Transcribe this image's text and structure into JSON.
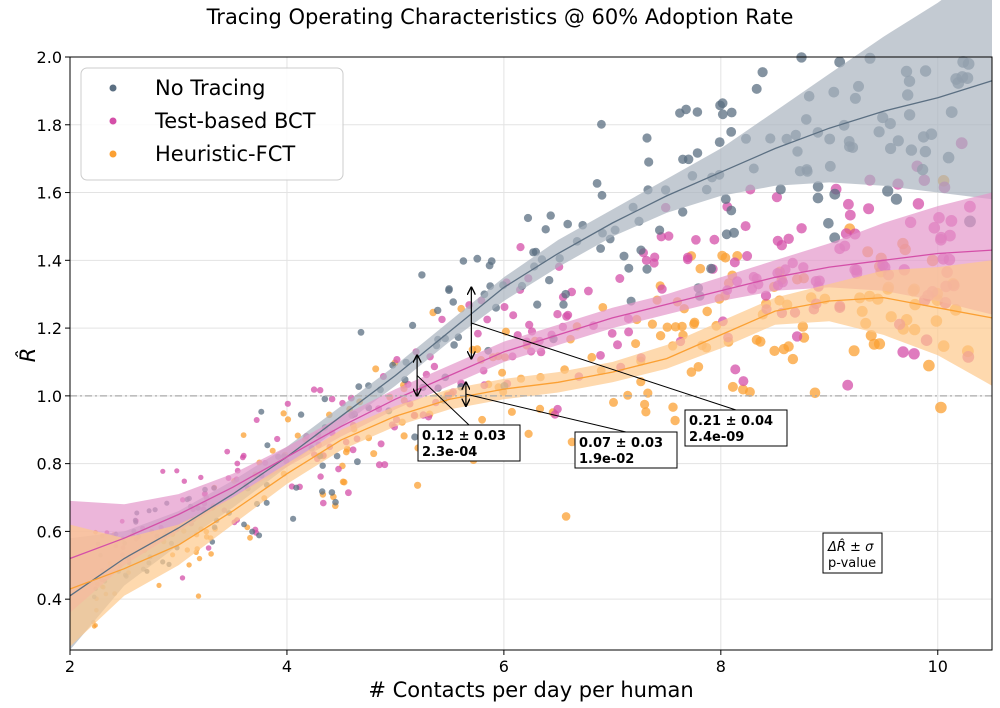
{
  "chart_data": {
    "type": "scatter",
    "title": "Tracing Operating Characteristics @ 60% Adoption Rate",
    "xlabel": "# Contacts per day per human",
    "ylabel": "R̂",
    "xlim": [
      2,
      10.5
    ],
    "ylim": [
      0.25,
      2.0
    ],
    "xticks": [
      "2",
      "4",
      "6",
      "8",
      "10"
    ],
    "yticks": [
      "0.4",
      "0.6",
      "0.8",
      "1.0",
      "1.2",
      "1.4",
      "1.6",
      "1.8",
      "2.0"
    ],
    "grid": true,
    "legend_position": "top-left",
    "reference_line_y": 1.0,
    "series": [
      {
        "name": "No Tracing",
        "color": "#5b6f82",
        "band_color": "#a9b4bf",
        "fit_x": [
          2.0,
          2.5,
          3.0,
          3.5,
          4.0,
          4.5,
          5.0,
          5.5,
          6.0,
          6.5,
          7.0,
          7.5,
          8.0,
          8.5,
          9.0,
          9.5,
          10.0,
          10.5
        ],
        "fit_y": [
          0.41,
          0.52,
          0.61,
          0.71,
          0.82,
          0.94,
          1.06,
          1.19,
          1.32,
          1.42,
          1.51,
          1.59,
          1.66,
          1.73,
          1.79,
          1.84,
          1.88,
          1.93
        ],
        "band_lower": [
          0.25,
          0.44,
          0.56,
          0.67,
          0.79,
          0.91,
          1.03,
          1.16,
          1.28,
          1.38,
          1.47,
          1.54,
          1.59,
          1.62,
          1.63,
          1.62,
          1.6,
          1.58
        ],
        "band_upper": [
          0.58,
          0.6,
          0.66,
          0.75,
          0.85,
          0.97,
          1.09,
          1.22,
          1.35,
          1.46,
          1.55,
          1.64,
          1.73,
          1.84,
          1.95,
          2.06,
          2.16,
          2.28
        ]
      },
      {
        "name": "Test-based BCT",
        "color": "#d44fa8",
        "band_color": "#e497cb",
        "fit_x": [
          2.0,
          2.5,
          3.0,
          3.5,
          4.0,
          4.5,
          5.0,
          5.5,
          6.0,
          6.5,
          7.0,
          7.5,
          8.0,
          8.5,
          9.0,
          9.5,
          10.0,
          10.5
        ],
        "fit_y": [
          0.52,
          0.58,
          0.65,
          0.73,
          0.82,
          0.91,
          0.99,
          1.06,
          1.13,
          1.18,
          1.23,
          1.27,
          1.31,
          1.35,
          1.38,
          1.4,
          1.42,
          1.43
        ],
        "band_lower": [
          0.36,
          0.5,
          0.6,
          0.7,
          0.79,
          0.88,
          0.96,
          1.03,
          1.1,
          1.15,
          1.2,
          1.24,
          1.28,
          1.31,
          1.32,
          1.31,
          1.28,
          1.24
        ],
        "band_upper": [
          0.69,
          0.68,
          0.71,
          0.77,
          0.85,
          0.94,
          1.02,
          1.09,
          1.16,
          1.21,
          1.26,
          1.3,
          1.35,
          1.4,
          1.45,
          1.51,
          1.56,
          1.6
        ]
      },
      {
        "name": "Heuristic-FCT",
        "color": "#fba033",
        "band_color": "#fdc98b",
        "fit_x": [
          2.0,
          2.5,
          3.0,
          3.5,
          4.0,
          4.5,
          5.0,
          5.5,
          6.0,
          6.5,
          7.0,
          7.5,
          8.0,
          8.5,
          9.0,
          9.5,
          10.0,
          10.5
        ],
        "fit_y": [
          0.43,
          0.49,
          0.56,
          0.66,
          0.77,
          0.87,
          0.94,
          0.99,
          1.02,
          1.04,
          1.07,
          1.11,
          1.18,
          1.25,
          1.28,
          1.29,
          1.26,
          1.23
        ],
        "band_lower": [
          0.26,
          0.41,
          0.5,
          0.62,
          0.74,
          0.84,
          0.91,
          0.96,
          0.99,
          1.01,
          1.04,
          1.08,
          1.14,
          1.21,
          1.22,
          1.18,
          1.12,
          1.03
        ],
        "band_upper": [
          0.62,
          0.58,
          0.62,
          0.7,
          0.8,
          0.9,
          0.97,
          1.02,
          1.05,
          1.07,
          1.1,
          1.15,
          1.22,
          1.29,
          1.33,
          1.37,
          1.38,
          1.4
        ]
      }
    ],
    "annotations": [
      {
        "x": 5.2,
        "y_top": 1.12,
        "y_bottom": 1.0,
        "line1": "0.12 ±  0.03",
        "line2": "2.3e-04"
      },
      {
        "x": 5.65,
        "y_top": 1.04,
        "y_bottom": 0.97,
        "line1": "0.07 ±  0.03",
        "line2": "1.9e-02"
      },
      {
        "x": 5.7,
        "y_top": 1.32,
        "y_bottom": 1.11,
        "line1": "0.21 ±  0.04",
        "line2": "2.4e-09"
      }
    ],
    "note": {
      "line1": "ΔR̂ ± σ",
      "line2": "p-value"
    }
  }
}
